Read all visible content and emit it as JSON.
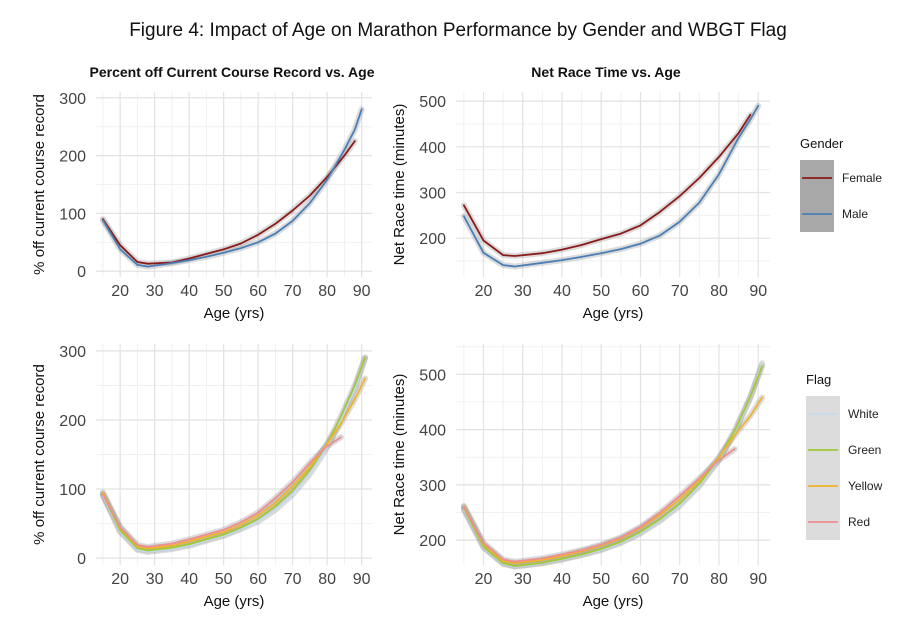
{
  "figure_title": "Figure 4: Impact of Age on Marathon Performance by Gender and WBGT Flag",
  "legends": {
    "gender": {
      "title": "Gender",
      "items": [
        {
          "name": "Female",
          "color": "#8b1a1a"
        },
        {
          "name": "Male",
          "color": "#4a7fb5"
        }
      ]
    },
    "flag": {
      "title": "Flag",
      "items": [
        {
          "name": "White",
          "color": "#c6dbef"
        },
        {
          "name": "Green",
          "color": "#a1c935"
        },
        {
          "name": "Yellow",
          "color": "#f0b429"
        },
        {
          "name": "Red",
          "color": "#ee8e8e"
        }
      ]
    }
  },
  "chart_data": [
    {
      "type": "line",
      "title": "Percent off Current Course Record vs. Age",
      "xlabel": "Age (yrs)",
      "ylabel": "% off current course record",
      "xlim": [
        13,
        93
      ],
      "ylim": [
        -10,
        310
      ],
      "xticks": [
        20,
        30,
        40,
        50,
        60,
        70,
        80,
        90
      ],
      "yticks": [
        0,
        100,
        200,
        300
      ],
      "grid": true,
      "legend": "Gender",
      "x": [
        15,
        20,
        25,
        28,
        35,
        40,
        45,
        50,
        55,
        60,
        65,
        70,
        75,
        80,
        85,
        88,
        90
      ],
      "series": [
        {
          "name": "Female",
          "values": [
            90,
            45,
            16,
            13,
            15,
            22,
            30,
            38,
            48,
            63,
            82,
            105,
            131,
            163,
            200,
            225,
            null
          ]
        },
        {
          "name": "Male",
          "values": [
            88,
            38,
            11,
            8,
            14,
            19,
            25,
            32,
            40,
            50,
            65,
            87,
            118,
            158,
            210,
            245,
            280
          ]
        }
      ]
    },
    {
      "type": "line",
      "title": "Net Race Time vs. Age",
      "xlabel": "Age (yrs)",
      "ylabel": "Net Race time (minutes)",
      "xlim": [
        13,
        93
      ],
      "ylim": [
        115,
        520
      ],
      "xticks": [
        20,
        30,
        40,
        50,
        60,
        70,
        80,
        90
      ],
      "yticks": [
        200,
        300,
        400,
        500
      ],
      "grid": true,
      "legend": "Gender",
      "x": [
        15,
        20,
        25,
        28,
        35,
        40,
        45,
        50,
        55,
        60,
        65,
        70,
        75,
        80,
        85,
        88,
        90
      ],
      "series": [
        {
          "name": "Female",
          "values": [
            272,
            195,
            163,
            161,
            167,
            175,
            185,
            198,
            210,
            228,
            258,
            292,
            332,
            378,
            430,
            470,
            null
          ]
        },
        {
          "name": "Male",
          "values": [
            248,
            168,
            141,
            138,
            146,
            152,
            159,
            167,
            176,
            188,
            206,
            236,
            278,
            340,
            420,
            460,
            490
          ]
        }
      ]
    },
    {
      "type": "line",
      "title": "",
      "xlabel": "Age (yrs)",
      "ylabel": "% off current course record",
      "xlim": [
        13,
        93
      ],
      "ylim": [
        -10,
        310
      ],
      "xticks": [
        20,
        30,
        40,
        50,
        60,
        70,
        80,
        90
      ],
      "yticks": [
        0,
        100,
        200,
        300
      ],
      "grid": true,
      "legend": "Flag",
      "x": [
        15,
        20,
        25,
        28,
        35,
        40,
        45,
        50,
        55,
        60,
        65,
        70,
        75,
        80,
        84,
        88,
        91
      ],
      "series": [
        {
          "name": "White",
          "values": [
            90,
            38,
            12,
            9,
            13,
            18,
            25,
            32,
            42,
            53,
            70,
            92,
            122,
            160,
            200,
            245,
            290
          ]
        },
        {
          "name": "Green",
          "values": [
            93,
            40,
            14,
            11,
            15,
            20,
            27,
            34,
            44,
            57,
            75,
            98,
            128,
            165,
            205,
            250,
            290
          ]
        },
        {
          "name": "Yellow",
          "values": [
            95,
            44,
            17,
            14,
            18,
            24,
            31,
            38,
            48,
            62,
            80,
            104,
            132,
            165,
            195,
            230,
            260
          ]
        },
        {
          "name": "Red",
          "values": [
            92,
            45,
            19,
            16,
            21,
            27,
            34,
            41,
            52,
            66,
            87,
            110,
            138,
            162,
            175,
            null,
            null
          ]
        }
      ]
    },
    {
      "type": "line",
      "title": "",
      "xlabel": "Age (yrs)",
      "ylabel": "Net Race time (minutes)",
      "xlim": [
        13,
        93
      ],
      "ylim": [
        155,
        555
      ],
      "xticks": [
        20,
        30,
        40,
        50,
        60,
        70,
        80,
        90
      ],
      "yticks": [
        200,
        300,
        400,
        500
      ],
      "grid": true,
      "legend": "Flag",
      "x": [
        15,
        20,
        25,
        28,
        35,
        40,
        45,
        50,
        55,
        60,
        65,
        70,
        75,
        80,
        84,
        88,
        91
      ],
      "series": [
        {
          "name": "White",
          "values": [
            255,
            187,
            157,
            152,
            158,
            165,
            173,
            182,
            195,
            212,
            235,
            262,
            298,
            345,
            395,
            458,
            520
          ]
        },
        {
          "name": "Green",
          "values": [
            258,
            188,
            158,
            153,
            159,
            166,
            174,
            184,
            197,
            215,
            238,
            266,
            302,
            348,
            398,
            460,
            515
          ]
        },
        {
          "name": "Yellow",
          "values": [
            262,
            193,
            162,
            158,
            164,
            171,
            180,
            190,
            203,
            222,
            246,
            274,
            308,
            350,
            390,
            425,
            458
          ]
        },
        {
          "name": "Red",
          "values": [
            260,
            195,
            165,
            161,
            167,
            174,
            182,
            192,
            205,
            224,
            250,
            280,
            312,
            345,
            365,
            null,
            null
          ]
        }
      ]
    }
  ]
}
